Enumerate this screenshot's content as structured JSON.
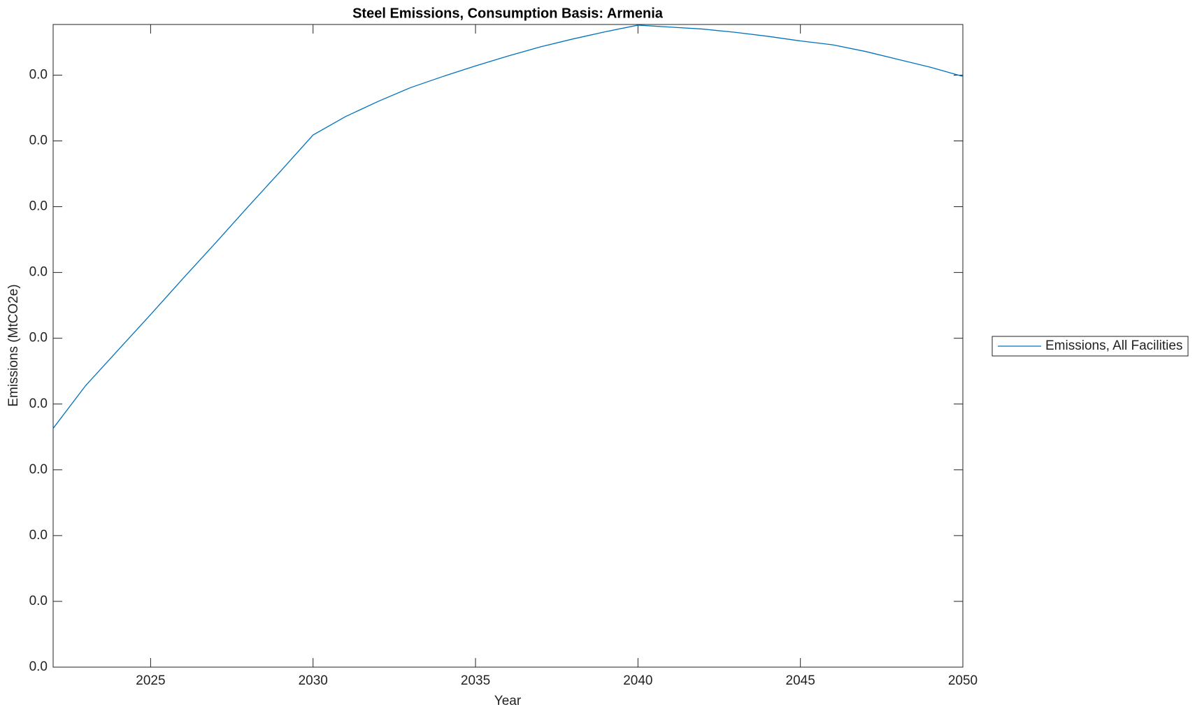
{
  "chart_data": {
    "type": "line",
    "title": "Steel Emissions, Consumption Basis: Armenia",
    "x_label": "Year",
    "y_label": "Emissions (MtCO2e)",
    "x": [
      2022,
      2023,
      2024,
      2025,
      2026,
      2027,
      2028,
      2029,
      2030,
      2031,
      2032,
      2033,
      2034,
      2035,
      2036,
      2037,
      2038,
      2039,
      2040,
      2041,
      2042,
      2043,
      2044,
      2045,
      2046,
      2047,
      2048,
      2049,
      2050
    ],
    "series": [
      {
        "name": "Emissions, All Facilities",
        "color": "#0072bd",
        "values": [
          0.00363,
          0.00428,
          0.00482,
          0.00536,
          0.00591,
          0.00645,
          0.007,
          0.00754,
          0.00809,
          0.00837,
          0.0086,
          0.00881,
          0.00898,
          0.00914,
          0.00929,
          0.00943,
          0.00955,
          0.00966,
          0.00976,
          0.00973,
          0.0097,
          0.00965,
          0.00959,
          0.00952,
          0.00946,
          0.00936,
          0.00924,
          0.00912,
          0.00898
        ]
      }
    ],
    "xlim": [
      2022,
      2050
    ],
    "xticks": [
      2025,
      2030,
      2035,
      2040,
      2045,
      2050
    ],
    "ylim": [
      0,
      0.00977
    ],
    "yticks": [
      {
        "value": 0,
        "label": "0.0"
      },
      {
        "value": 0.001,
        "label": "0.0"
      },
      {
        "value": 0.002,
        "label": "0.0"
      },
      {
        "value": 0.003,
        "label": "0.0"
      },
      {
        "value": 0.004,
        "label": "0.0"
      },
      {
        "value": 0.005,
        "label": "0.0"
      },
      {
        "value": 0.006,
        "label": "0.0"
      },
      {
        "value": 0.007,
        "label": "0.0"
      },
      {
        "value": 0.008,
        "label": "0.0"
      },
      {
        "value": 0.009,
        "label": "0.0"
      }
    ],
    "legend": "outside-right"
  }
}
